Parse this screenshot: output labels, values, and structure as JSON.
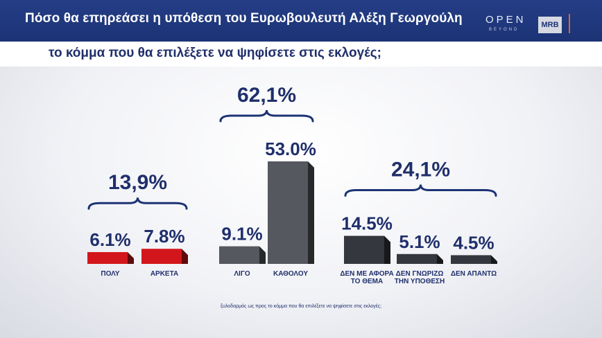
{
  "header": {
    "title": "Πόσο θα επηρεάσει η υπόθεση του Ευρωβουλευτή Αλέξη Γεωργούλη",
    "subtitle": "το κόμμα που θα επιλέξετε να ψηφίσετε στις εκλογές;"
  },
  "logos": {
    "open": "OPEN",
    "beyond": "BEYOND",
    "mrb": "MRB"
  },
  "footnote": "ξυλοδαρμός ως προς το κόμμα που θα επιλέξετε να ψηφίσετε στις εκλογές;",
  "colors": {
    "navy": "#1c3375",
    "red": "#d3161b",
    "gray": "#55585e",
    "dark": "#34373d",
    "accent": "#e2652c"
  },
  "chart_data": {
    "type": "bar",
    "categories": [
      "ΠΟΛΥ",
      "ΑΡΚΕΤΑ",
      "ΛΙΓΟ",
      "ΚΑΘΟΛΟΥ",
      "ΔΕΝ ΜΕ ΑΦΟΡΑ ΤΟ ΘΕΜΑ",
      "ΔΕΝ ΓΝΩΡΙΖΩ ΤΗΝ ΥΠΟΘΕΣΗ",
      "ΔΕΝ ΑΠΑΝΤΩ"
    ],
    "values": [
      6.1,
      7.8,
      9.1,
      53.0,
      14.5,
      5.1,
      4.5
    ],
    "value_labels": [
      "6.1%",
      "7.8%",
      "9.1%",
      "53.0%",
      "14.5%",
      "5.1%",
      "4.5%"
    ],
    "bar_colors": [
      "#d3161b",
      "#d3161b",
      "#55585e",
      "#55585e",
      "#34373d",
      "#34373d",
      "#34373d"
    ],
    "groups": [
      {
        "label": "13,9%",
        "members": [
          0,
          1
        ]
      },
      {
        "label": "62,1%",
        "members": [
          2,
          3
        ]
      },
      {
        "label": "24,1%",
        "members": [
          4,
          5,
          6
        ]
      }
    ],
    "ylim": [
      0,
      53.0
    ]
  }
}
